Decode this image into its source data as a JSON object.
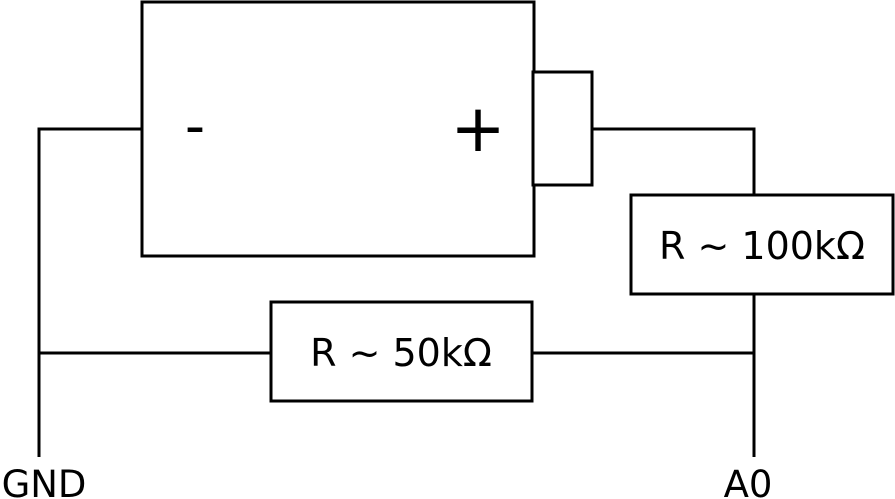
{
  "battery": {
    "negative_symbol": "-",
    "positive_symbol": "+"
  },
  "resistors": {
    "upper_label": "R ~ 100kΩ",
    "lower_label": "R ~ 50kΩ"
  },
  "terminals": {
    "ground": "GND",
    "analog_pin": "A0"
  }
}
